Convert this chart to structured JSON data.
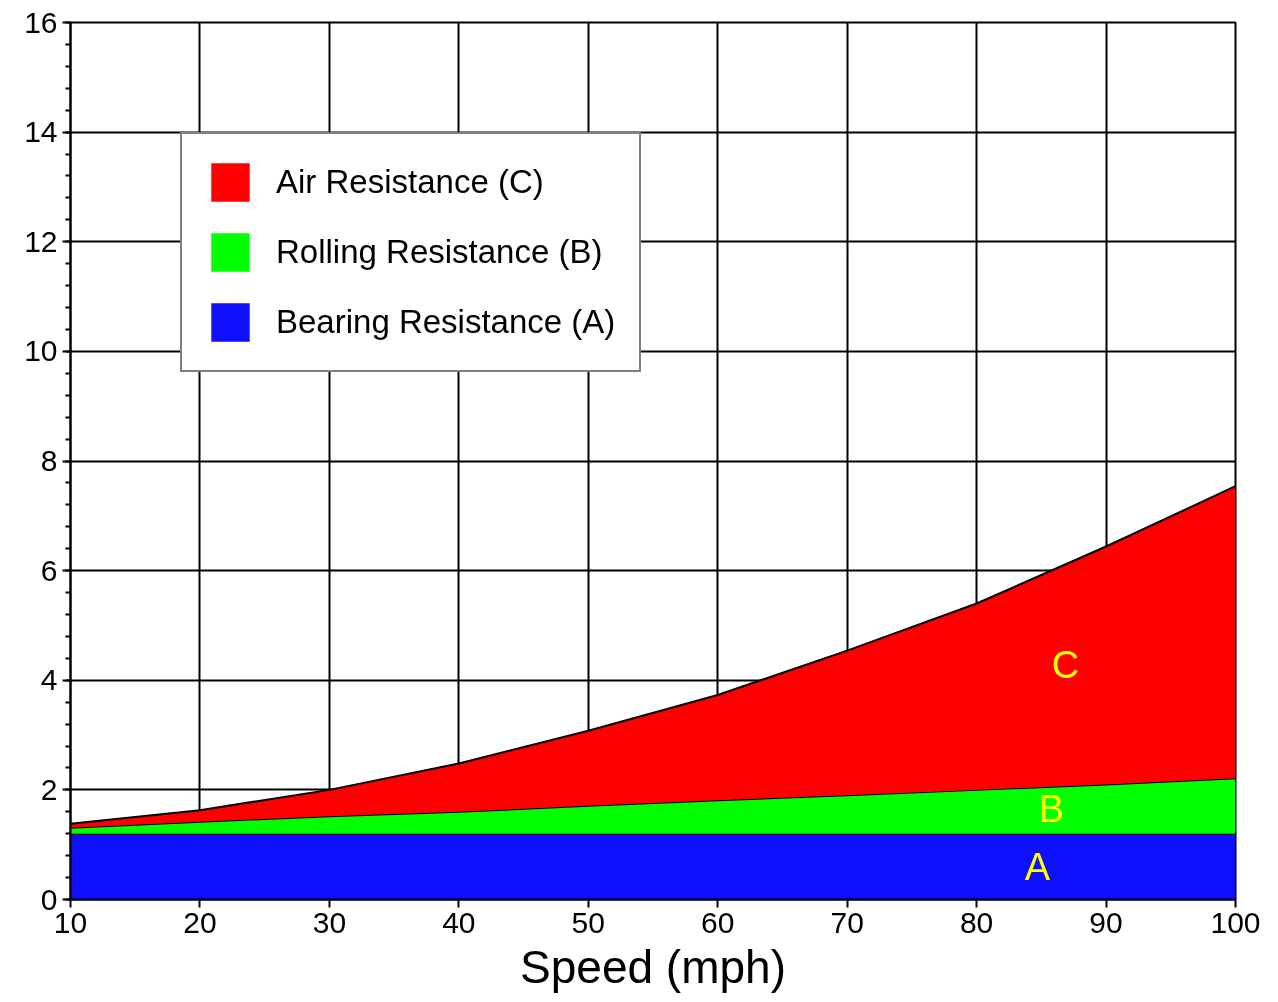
{
  "chart_data": {
    "type": "area",
    "stacked": true,
    "xlabel": "Speed (mph)",
    "x": [
      10,
      20,
      30,
      40,
      50,
      60,
      70,
      80,
      90,
      100
    ],
    "series": [
      {
        "name": "Bearing Resistance (A)",
        "color": "#0f0fff",
        "values": [
          1.2,
          1.2,
          1.2,
          1.2,
          1.2,
          1.2,
          1.2,
          1.2,
          1.2,
          1.2
        ]
      },
      {
        "name": "Rolling Resistance (B)",
        "color": "#00ff00",
        "values": [
          0.11,
          0.22,
          0.32,
          0.4,
          0.51,
          0.61,
          0.7,
          0.8,
          0.9,
          1.01
        ]
      },
      {
        "name": "Air Resistance (C)",
        "color": "#ff0000",
        "values": [
          0.07,
          0.21,
          0.48,
          0.88,
          1.37,
          1.92,
          2.64,
          3.4,
          4.34,
          5.33
        ]
      }
    ],
    "annotations": [
      "A",
      "B",
      "C"
    ],
    "xlim": [
      10,
      100
    ],
    "ylim": [
      0,
      16
    ],
    "xticks": [
      10,
      20,
      30,
      40,
      50,
      60,
      70,
      80,
      90,
      100
    ],
    "yticks": [
      0,
      2,
      4,
      6,
      8,
      10,
      12,
      14,
      16
    ],
    "grid": true,
    "legend": "top left"
  }
}
